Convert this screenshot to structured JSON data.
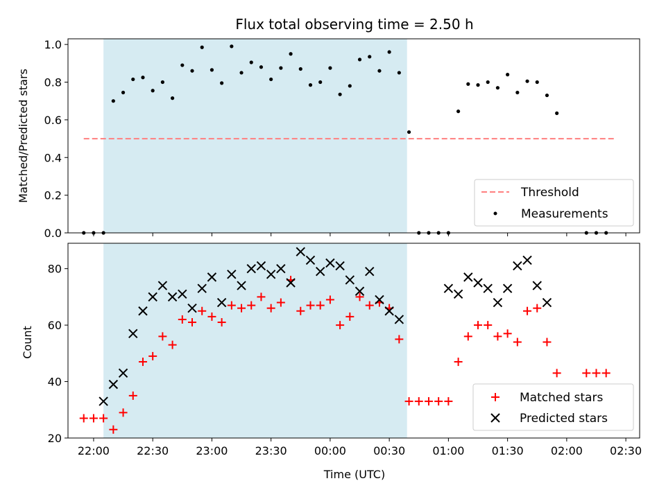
{
  "chart_data": [
    {
      "type": "scatter",
      "title": "Flux total observing time = 2.50 h",
      "ylabel": "Matched/Predicted stars",
      "xlabel": "",
      "xlim": [
        "21:47",
        "02:37"
      ],
      "ylim": [
        0,
        1.03
      ],
      "y_ticks": [
        "0.0",
        "0.2",
        "0.4",
        "0.6",
        "0.8",
        "1.0"
      ],
      "grid": false,
      "legend_position": "bottom-right",
      "shaded_interval": [
        "22:05",
        "00:39"
      ],
      "threshold": {
        "name": "Threshold",
        "y": 0.5,
        "x_range": [
          "21:55",
          "02:25"
        ],
        "color": "#ff7f7f"
      },
      "series": [
        {
          "name": "Measurements",
          "color": "#000000",
          "x": [
            "21:55",
            "22:00",
            "22:05",
            "22:10",
            "22:15",
            "22:20",
            "22:25",
            "22:30",
            "22:35",
            "22:40",
            "22:45",
            "22:50",
            "22:55",
            "23:00",
            "23:05",
            "23:10",
            "23:15",
            "23:20",
            "23:25",
            "23:30",
            "23:35",
            "23:40",
            "23:45",
            "23:50",
            "23:55",
            "00:00",
            "00:05",
            "00:10",
            "00:15",
            "00:20",
            "00:25",
            "00:30",
            "00:35",
            "00:40",
            "00:45",
            "00:50",
            "00:55",
            "01:00",
            "01:05",
            "01:10",
            "01:15",
            "01:20",
            "01:25",
            "01:30",
            "01:35",
            "01:40",
            "01:45",
            "01:50",
            "01:55",
            "02:10",
            "02:15",
            "02:20"
          ],
          "y": [
            0,
            0,
            0,
            0.7,
            0.745,
            0.815,
            0.825,
            0.755,
            0.8,
            0.715,
            0.89,
            0.86,
            0.985,
            0.865,
            0.795,
            0.99,
            0.85,
            0.905,
            0.88,
            0.815,
            0.875,
            0.95,
            0.87,
            0.785,
            0.8,
            0.875,
            0.735,
            0.78,
            0.92,
            0.935,
            0.86,
            0.96,
            0.85,
            0.535,
            0,
            0,
            0,
            0,
            0.645,
            0.79,
            0.785,
            0.8,
            0.77,
            0.84,
            0.745,
            0.805,
            0.8,
            0.73,
            0.635,
            0,
            0,
            0
          ]
        }
      ]
    },
    {
      "type": "scatter",
      "title": "",
      "xlabel": "Time (UTC)",
      "ylabel": "Count",
      "xlim": [
        "21:47",
        "02:37"
      ],
      "ylim": [
        20,
        89
      ],
      "y_ticks": [
        "20",
        "40",
        "60",
        "80"
      ],
      "x_ticks": [
        "22:00",
        "22:30",
        "23:00",
        "23:30",
        "00:00",
        "00:30",
        "01:00",
        "01:30",
        "02:00",
        "02:30"
      ],
      "grid": false,
      "legend_position": "bottom-right",
      "shaded_interval": [
        "22:05",
        "00:39"
      ],
      "series": [
        {
          "name": "Matched stars",
          "color": "#ff0000",
          "marker": "plus",
          "x": [
            "21:55",
            "22:00",
            "22:05",
            "22:10",
            "22:15",
            "22:20",
            "22:25",
            "22:30",
            "22:35",
            "22:40",
            "22:45",
            "22:50",
            "22:55",
            "23:00",
            "23:05",
            "23:10",
            "23:15",
            "23:20",
            "23:25",
            "23:30",
            "23:35",
            "23:40",
            "23:45",
            "23:50",
            "23:55",
            "00:00",
            "00:05",
            "00:10",
            "00:15",
            "00:20",
            "00:25",
            "00:30",
            "00:35",
            "00:40",
            "00:45",
            "00:50",
            "00:55",
            "01:00",
            "01:05",
            "01:10",
            "01:15",
            "01:20",
            "01:25",
            "01:30",
            "01:35",
            "01:40",
            "01:45",
            "01:50",
            "01:55",
            "02:10",
            "02:15",
            "02:20"
          ],
          "y": [
            27,
            27,
            27,
            23,
            29,
            35,
            47,
            49,
            56,
            53,
            62,
            61,
            65,
            63,
            61,
            67,
            66,
            67,
            70,
            66,
            68,
            76,
            65,
            67,
            67,
            69,
            60,
            63,
            70,
            67,
            68,
            66,
            55,
            33,
            33,
            33,
            33,
            33,
            47,
            56,
            60,
            60,
            56,
            57,
            54,
            65,
            66,
            54,
            43,
            43,
            43,
            43
          ]
        },
        {
          "name": "Predicted stars",
          "color": "#000000",
          "marker": "x",
          "x": [
            "22:05",
            "22:10",
            "22:15",
            "22:20",
            "22:25",
            "22:30",
            "22:35",
            "22:40",
            "22:45",
            "22:50",
            "22:55",
            "23:00",
            "23:05",
            "23:10",
            "23:15",
            "23:20",
            "23:25",
            "23:30",
            "23:35",
            "23:40",
            "23:45",
            "23:50",
            "23:55",
            "00:00",
            "00:05",
            "00:10",
            "00:15",
            "00:20",
            "00:25",
            "00:30",
            "00:35",
            "01:00",
            "01:05",
            "01:10",
            "01:15",
            "01:20",
            "01:25",
            "01:30",
            "01:35",
            "01:40",
            "01:45",
            "01:50"
          ],
          "y": [
            33,
            39,
            43,
            57,
            65,
            70,
            74,
            70,
            71,
            66,
            73,
            77,
            68,
            78,
            74,
            80,
            81,
            78,
            80,
            75,
            86,
            83,
            79,
            82,
            81,
            76,
            72,
            79,
            69,
            65,
            62,
            73,
            71,
            77,
            75,
            73,
            68,
            73,
            81,
            83,
            74,
            68
          ]
        }
      ]
    }
  ]
}
